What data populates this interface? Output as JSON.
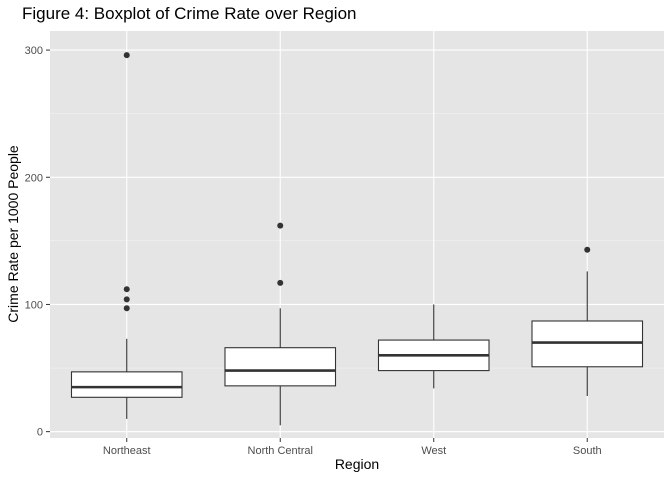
{
  "chart_data": {
    "type": "boxplot",
    "title": "Figure 4: Boxplot of Crime Rate over Region",
    "xlabel": "Region",
    "ylabel": "Crime Rate per 1000 People",
    "ylim": [
      -5,
      315
    ],
    "yticks": [
      0,
      100,
      200,
      300
    ],
    "categories": [
      "Northeast",
      "North Central",
      "West",
      "South"
    ],
    "boxes": [
      {
        "category": "Northeast",
        "min": 10,
        "q1": 27,
        "median": 35,
        "q3": 47,
        "max": 73,
        "outliers": [
          97,
          104,
          112,
          296
        ]
      },
      {
        "category": "North Central",
        "min": 5,
        "q1": 36,
        "median": 48,
        "q3": 66,
        "max": 97,
        "outliers": [
          117,
          162
        ]
      },
      {
        "category": "West",
        "min": 34,
        "q1": 48,
        "median": 60,
        "q3": 72,
        "max": 100,
        "outliers": []
      },
      {
        "category": "South",
        "min": 28,
        "q1": 51,
        "median": 70,
        "q3": 87,
        "max": 126,
        "outliers": [
          143
        ]
      }
    ],
    "grid": true,
    "colors": {
      "panel": "#e5e5e5",
      "grid_major": "#ffffff",
      "grid_minor": "#f2f2f2",
      "box_fill": "#ffffff",
      "box_line": "#333333",
      "point": "#333333"
    }
  }
}
